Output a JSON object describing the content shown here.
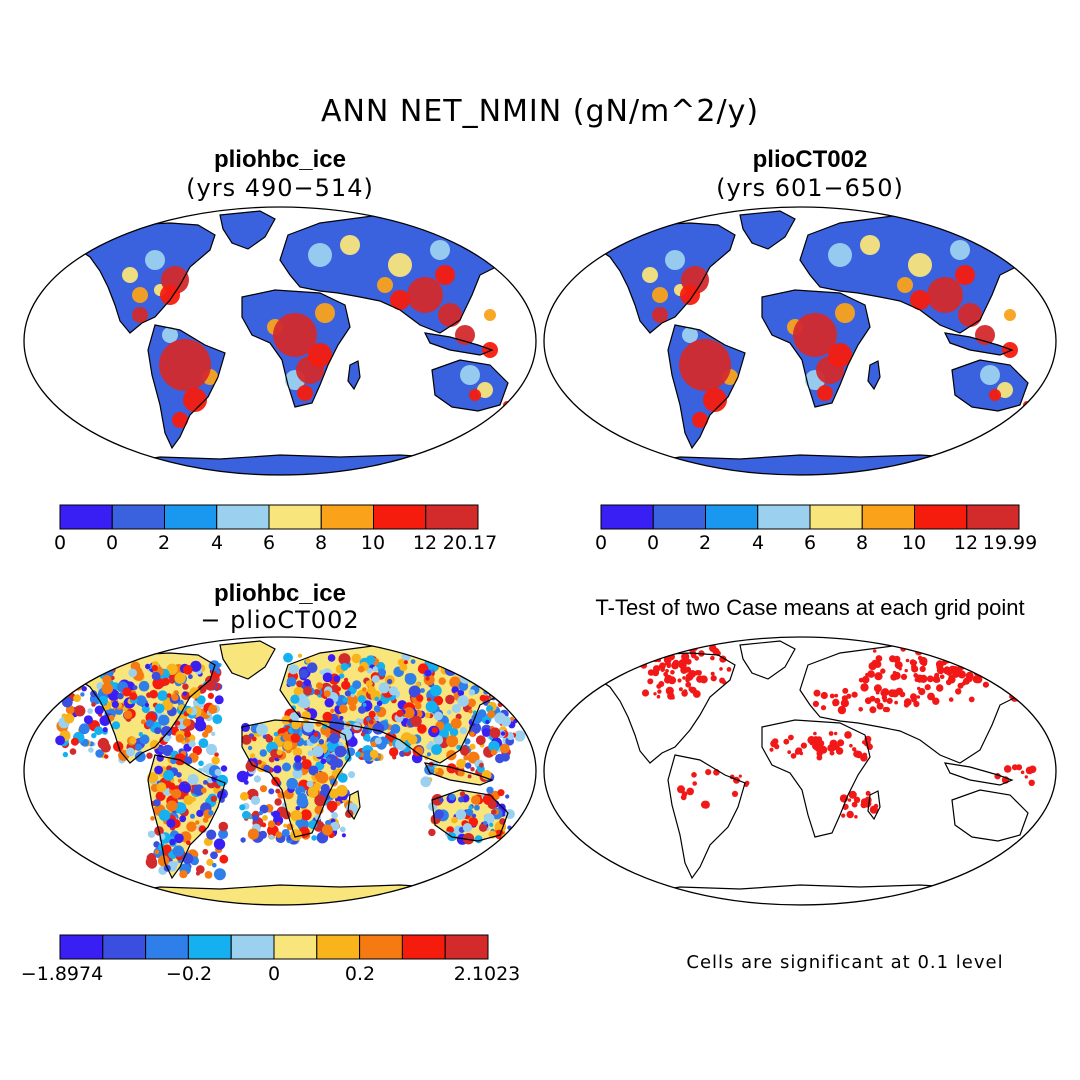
{
  "title": "ANN NET_NMIN (gN/m^2/y)",
  "colors": {
    "c1": "#3a1ff5",
    "c2": "#3a62df",
    "c3": "#1a98ef",
    "c4": "#9bd0ee",
    "c5": "#f8e57b",
    "c6": "#f9a21a",
    "c7": "#f51c0e",
    "c8": "#d32a2c",
    "d_bluedark": "#3a1ff5",
    "d_blue": "#3a4fe0",
    "d_mid": "#2f7fea",
    "d_sky": "#14b0f0",
    "d_light": "#9bd0ee",
    "d_yellow": "#f8e57b",
    "d_gold": "#f8b41a",
    "d_orange": "#f57a12",
    "d_red": "#f51c0e",
    "d_dark": "#d32a2c",
    "sig": "#f21818"
  },
  "panels": [
    {
      "name": "pliohbc_ice",
      "subtitle": "(yrs 490−514)",
      "colorbar_ticks": [
        "0",
        "0",
        "2",
        "4",
        "6",
        "8",
        "10",
        "12",
        "20.17"
      ]
    },
    {
      "name": "plioCT002",
      "subtitle": "(yrs 601−650)",
      "colorbar_ticks": [
        "0",
        "0",
        "2",
        "4",
        "6",
        "8",
        "10",
        "12",
        "19.99"
      ]
    },
    {
      "name": "pliohbc_ice",
      "subtitle": "− plioCT002",
      "colorbar_ticks": [
        "−1.8974",
        "−0.2",
        "0",
        "0.2",
        "2.1023"
      ]
    },
    {
      "name": "T-Test of two Case means at each grid point",
      "note": "Cells are significant at 0.1 level"
    }
  ]
}
